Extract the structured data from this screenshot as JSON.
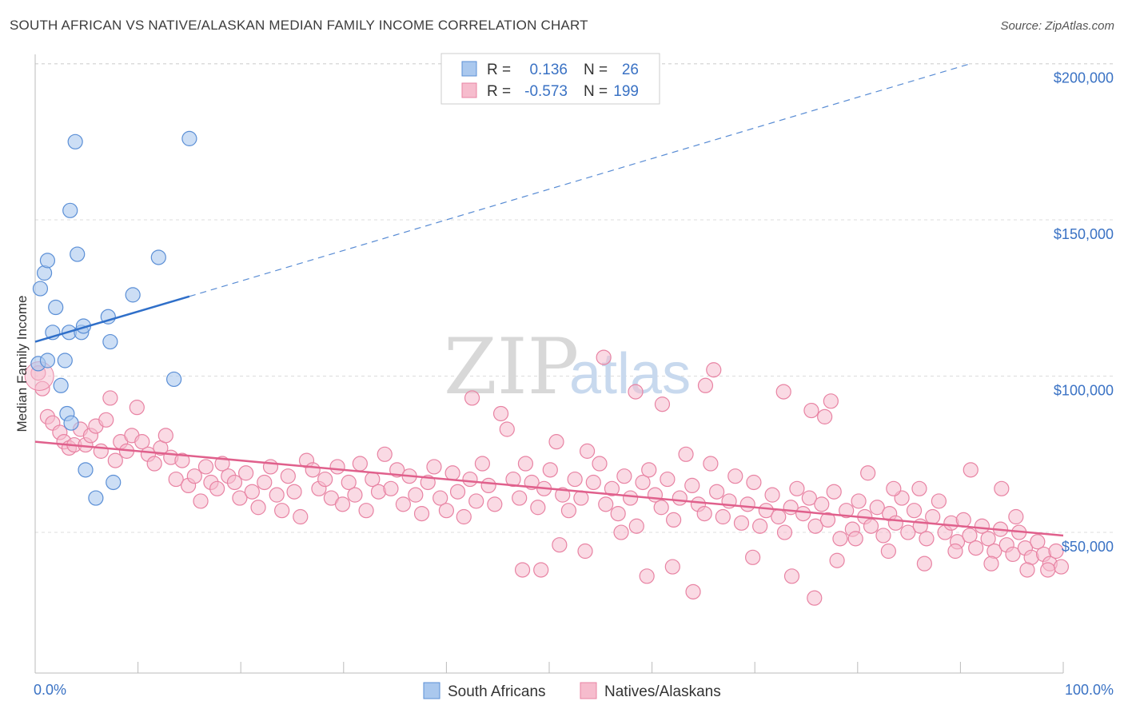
{
  "title": "SOUTH AFRICAN VS NATIVE/ALASKAN MEDIAN FAMILY INCOME CORRELATION CHART",
  "source": "Source: ZipAtlas.com",
  "watermark": {
    "part1": "ZIP",
    "part2": "atlas"
  },
  "colors": {
    "blue_fill": "#aac8ee",
    "blue_stroke": "#5b8fd6",
    "blue_line": "#2f6fc9",
    "pink_fill": "#f6bccd",
    "pink_stroke": "#e883a3",
    "pink_line": "#e0608c",
    "grid": "#dcdcdc",
    "label": "#3a72c4"
  },
  "legend": {
    "rows": [
      {
        "r_label": "R =",
        "r_value": "0.136",
        "n_label": "N =",
        "n_value": "26"
      },
      {
        "r_label": "R =",
        "r_value": "-0.573",
        "n_label": "N =",
        "n_value": "199"
      }
    ]
  },
  "bottom_legend": [
    "South Africans",
    "Natives/Alaskans"
  ],
  "chart_data": {
    "type": "scatter",
    "title": "SOUTH AFRICAN VS NATIVE/ALASKAN MEDIAN FAMILY INCOME CORRELATION CHART",
    "ylabel": "Median Family Income",
    "xlim": [
      0,
      100
    ],
    "ylim": [
      5000,
      205000
    ],
    "x_tick_labels": [
      "0.0%",
      "100.0%"
    ],
    "y_ticks": [
      50000,
      100000,
      150000,
      200000
    ],
    "y_tick_labels": [
      "$50,000",
      "$100,000",
      "$150,000",
      "$200,000"
    ],
    "grid": true,
    "legend_position": "top-center",
    "series": [
      {
        "name": "South Africans",
        "r": 0.136,
        "n": 26,
        "trend": {
          "x0": 0,
          "y0": 111000,
          "x1": 15,
          "y1": 125500,
          "dash_to_x": 91,
          "dash_to_y": 200000
        },
        "points": [
          [
            0.3,
            104000
          ],
          [
            0.5,
            128000
          ],
          [
            0.9,
            133000
          ],
          [
            1.2,
            137000
          ],
          [
            1.7,
            114000
          ],
          [
            2.0,
            122000
          ],
          [
            2.5,
            97000
          ],
          [
            2.9,
            105000
          ],
          [
            3.1,
            88000
          ],
          [
            3.3,
            114000
          ],
          [
            3.5,
            85000
          ],
          [
            3.4,
            153000
          ],
          [
            3.9,
            175000
          ],
          [
            4.1,
            139000
          ],
          [
            4.5,
            114000
          ],
          [
            4.7,
            116000
          ],
          [
            4.9,
            70000
          ],
          [
            5.9,
            61000
          ],
          [
            7.1,
            119000
          ],
          [
            7.3,
            111000
          ],
          [
            7.6,
            66000
          ],
          [
            9.5,
            126000
          ],
          [
            12.0,
            138000
          ],
          [
            13.5,
            99000
          ],
          [
            15.0,
            176000
          ],
          [
            1.2,
            105000
          ]
        ]
      },
      {
        "name": "Natives/Alaskans",
        "r": -0.573,
        "n": 199,
        "trend": {
          "x0": 0,
          "y0": 79000,
          "x1": 100,
          "y1": 49000
        },
        "points": [
          [
            0.3,
            101000
          ],
          [
            0.7,
            96000
          ],
          [
            1.2,
            87000
          ],
          [
            1.7,
            85000
          ],
          [
            2.4,
            82000
          ],
          [
            2.8,
            79000
          ],
          [
            3.3,
            77000
          ],
          [
            3.8,
            78000
          ],
          [
            4.4,
            83000
          ],
          [
            4.9,
            78000
          ],
          [
            5.4,
            81000
          ],
          [
            5.9,
            84000
          ],
          [
            6.4,
            76000
          ],
          [
            6.9,
            86000
          ],
          [
            7.3,
            93000
          ],
          [
            7.8,
            73000
          ],
          [
            8.3,
            79000
          ],
          [
            8.9,
            76000
          ],
          [
            9.4,
            81000
          ],
          [
            9.9,
            90000
          ],
          [
            10.4,
            79000
          ],
          [
            11.0,
            75000
          ],
          [
            11.6,
            72000
          ],
          [
            12.2,
            77000
          ],
          [
            12.7,
            81000
          ],
          [
            13.2,
            74000
          ],
          [
            13.7,
            67000
          ],
          [
            14.3,
            73000
          ],
          [
            14.9,
            65000
          ],
          [
            15.5,
            68000
          ],
          [
            16.1,
            60000
          ],
          [
            16.6,
            71000
          ],
          [
            17.1,
            66000
          ],
          [
            17.7,
            64000
          ],
          [
            18.2,
            72000
          ],
          [
            18.8,
            68000
          ],
          [
            19.4,
            66000
          ],
          [
            19.9,
            61000
          ],
          [
            20.5,
            69000
          ],
          [
            21.1,
            63000
          ],
          [
            21.7,
            58000
          ],
          [
            22.3,
            66000
          ],
          [
            22.9,
            71000
          ],
          [
            23.5,
            62000
          ],
          [
            24.0,
            57000
          ],
          [
            24.6,
            68000
          ],
          [
            25.2,
            63000
          ],
          [
            25.8,
            55000
          ],
          [
            26.4,
            73000
          ],
          [
            27.0,
            70000
          ],
          [
            27.6,
            64000
          ],
          [
            28.2,
            67000
          ],
          [
            28.8,
            61000
          ],
          [
            29.4,
            71000
          ],
          [
            29.9,
            59000
          ],
          [
            30.5,
            66000
          ],
          [
            31.1,
            62000
          ],
          [
            31.6,
            72000
          ],
          [
            32.2,
            57000
          ],
          [
            32.8,
            67000
          ],
          [
            33.4,
            63000
          ],
          [
            34.0,
            75000
          ],
          [
            34.6,
            64000
          ],
          [
            35.2,
            70000
          ],
          [
            35.8,
            59000
          ],
          [
            36.4,
            68000
          ],
          [
            37.0,
            62000
          ],
          [
            37.6,
            56000
          ],
          [
            38.2,
            66000
          ],
          [
            38.8,
            71000
          ],
          [
            39.4,
            61000
          ],
          [
            40.0,
            57000
          ],
          [
            40.6,
            69000
          ],
          [
            41.1,
            63000
          ],
          [
            41.7,
            55000
          ],
          [
            42.3,
            67000
          ],
          [
            42.9,
            60000
          ],
          [
            43.5,
            72000
          ],
          [
            44.1,
            65000
          ],
          [
            44.7,
            59000
          ],
          [
            45.3,
            88000
          ],
          [
            45.9,
            83000
          ],
          [
            46.5,
            67000
          ],
          [
            47.1,
            61000
          ],
          [
            47.7,
            72000
          ],
          [
            48.3,
            66000
          ],
          [
            48.9,
            58000
          ],
          [
            49.5,
            64000
          ],
          [
            50.1,
            70000
          ],
          [
            50.7,
            79000
          ],
          [
            51.3,
            62000
          ],
          [
            51.9,
            57000
          ],
          [
            52.5,
            67000
          ],
          [
            53.1,
            61000
          ],
          [
            53.7,
            76000
          ],
          [
            54.3,
            66000
          ],
          [
            54.9,
            72000
          ],
          [
            55.5,
            59000
          ],
          [
            56.1,
            64000
          ],
          [
            56.7,
            56000
          ],
          [
            57.3,
            68000
          ],
          [
            57.9,
            61000
          ],
          [
            58.5,
            52000
          ],
          [
            59.1,
            66000
          ],
          [
            59.7,
            70000
          ],
          [
            60.3,
            62000
          ],
          [
            60.9,
            58000
          ],
          [
            61.5,
            67000
          ],
          [
            62.1,
            54000
          ],
          [
            62.7,
            61000
          ],
          [
            63.3,
            75000
          ],
          [
            63.9,
            65000
          ],
          [
            64.5,
            59000
          ],
          [
            65.1,
            56000
          ],
          [
            65.7,
            72000
          ],
          [
            66.3,
            63000
          ],
          [
            66.9,
            55000
          ],
          [
            67.5,
            60000
          ],
          [
            68.1,
            68000
          ],
          [
            68.7,
            53000
          ],
          [
            69.3,
            59000
          ],
          [
            69.9,
            66000
          ],
          [
            70.5,
            52000
          ],
          [
            71.1,
            57000
          ],
          [
            71.7,
            62000
          ],
          [
            72.3,
            55000
          ],
          [
            72.9,
            50000
          ],
          [
            73.5,
            58000
          ],
          [
            74.1,
            64000
          ],
          [
            74.7,
            56000
          ],
          [
            75.3,
            61000
          ],
          [
            75.9,
            52000
          ],
          [
            76.5,
            59000
          ],
          [
            77.1,
            54000
          ],
          [
            77.7,
            63000
          ],
          [
            78.3,
            48000
          ],
          [
            78.9,
            57000
          ],
          [
            79.5,
            51000
          ],
          [
            80.1,
            60000
          ],
          [
            80.7,
            55000
          ],
          [
            81.3,
            52000
          ],
          [
            81.9,
            58000
          ],
          [
            82.5,
            49000
          ],
          [
            83.1,
            56000
          ],
          [
            83.7,
            53000
          ],
          [
            84.3,
            61000
          ],
          [
            84.9,
            50000
          ],
          [
            85.5,
            57000
          ],
          [
            86.1,
            52000
          ],
          [
            86.7,
            48000
          ],
          [
            87.3,
            55000
          ],
          [
            87.9,
            60000
          ],
          [
            88.5,
            50000
          ],
          [
            89.1,
            53000
          ],
          [
            89.7,
            47000
          ],
          [
            90.3,
            54000
          ],
          [
            90.9,
            49000
          ],
          [
            91.5,
            45000
          ],
          [
            92.1,
            52000
          ],
          [
            92.7,
            48000
          ],
          [
            93.3,
            44000
          ],
          [
            93.9,
            51000
          ],
          [
            94.5,
            46000
          ],
          [
            95.1,
            43000
          ],
          [
            95.7,
            50000
          ],
          [
            96.3,
            45000
          ],
          [
            96.9,
            42000
          ],
          [
            97.5,
            47000
          ],
          [
            98.1,
            43000
          ],
          [
            98.7,
            40000
          ],
          [
            99.3,
            44000
          ],
          [
            99.8,
            39000
          ],
          [
            42.5,
            93000
          ],
          [
            55.3,
            106000
          ],
          [
            58.4,
            95000
          ],
          [
            61.0,
            91000
          ],
          [
            66.0,
            102000
          ],
          [
            65.2,
            97000
          ],
          [
            72.8,
            95000
          ],
          [
            75.5,
            89000
          ],
          [
            76.8,
            87000
          ],
          [
            77.4,
            92000
          ],
          [
            47.4,
            38000
          ],
          [
            49.2,
            38000
          ],
          [
            51.0,
            46000
          ],
          [
            53.5,
            44000
          ],
          [
            57.0,
            50000
          ],
          [
            59.5,
            36000
          ],
          [
            62.0,
            39000
          ],
          [
            64.0,
            31000
          ],
          [
            69.8,
            42000
          ],
          [
            73.6,
            36000
          ],
          [
            75.8,
            29000
          ],
          [
            78.0,
            41000
          ],
          [
            79.8,
            48000
          ],
          [
            83.0,
            44000
          ],
          [
            86.5,
            40000
          ],
          [
            89.5,
            44000
          ],
          [
            93.0,
            40000
          ],
          [
            96.5,
            38000
          ],
          [
            98.5,
            38000
          ],
          [
            81.0,
            69000
          ],
          [
            83.5,
            64000
          ],
          [
            86.0,
            64000
          ],
          [
            91.0,
            70000
          ],
          [
            94.0,
            64000
          ],
          [
            95.4,
            55000
          ]
        ]
      }
    ]
  }
}
